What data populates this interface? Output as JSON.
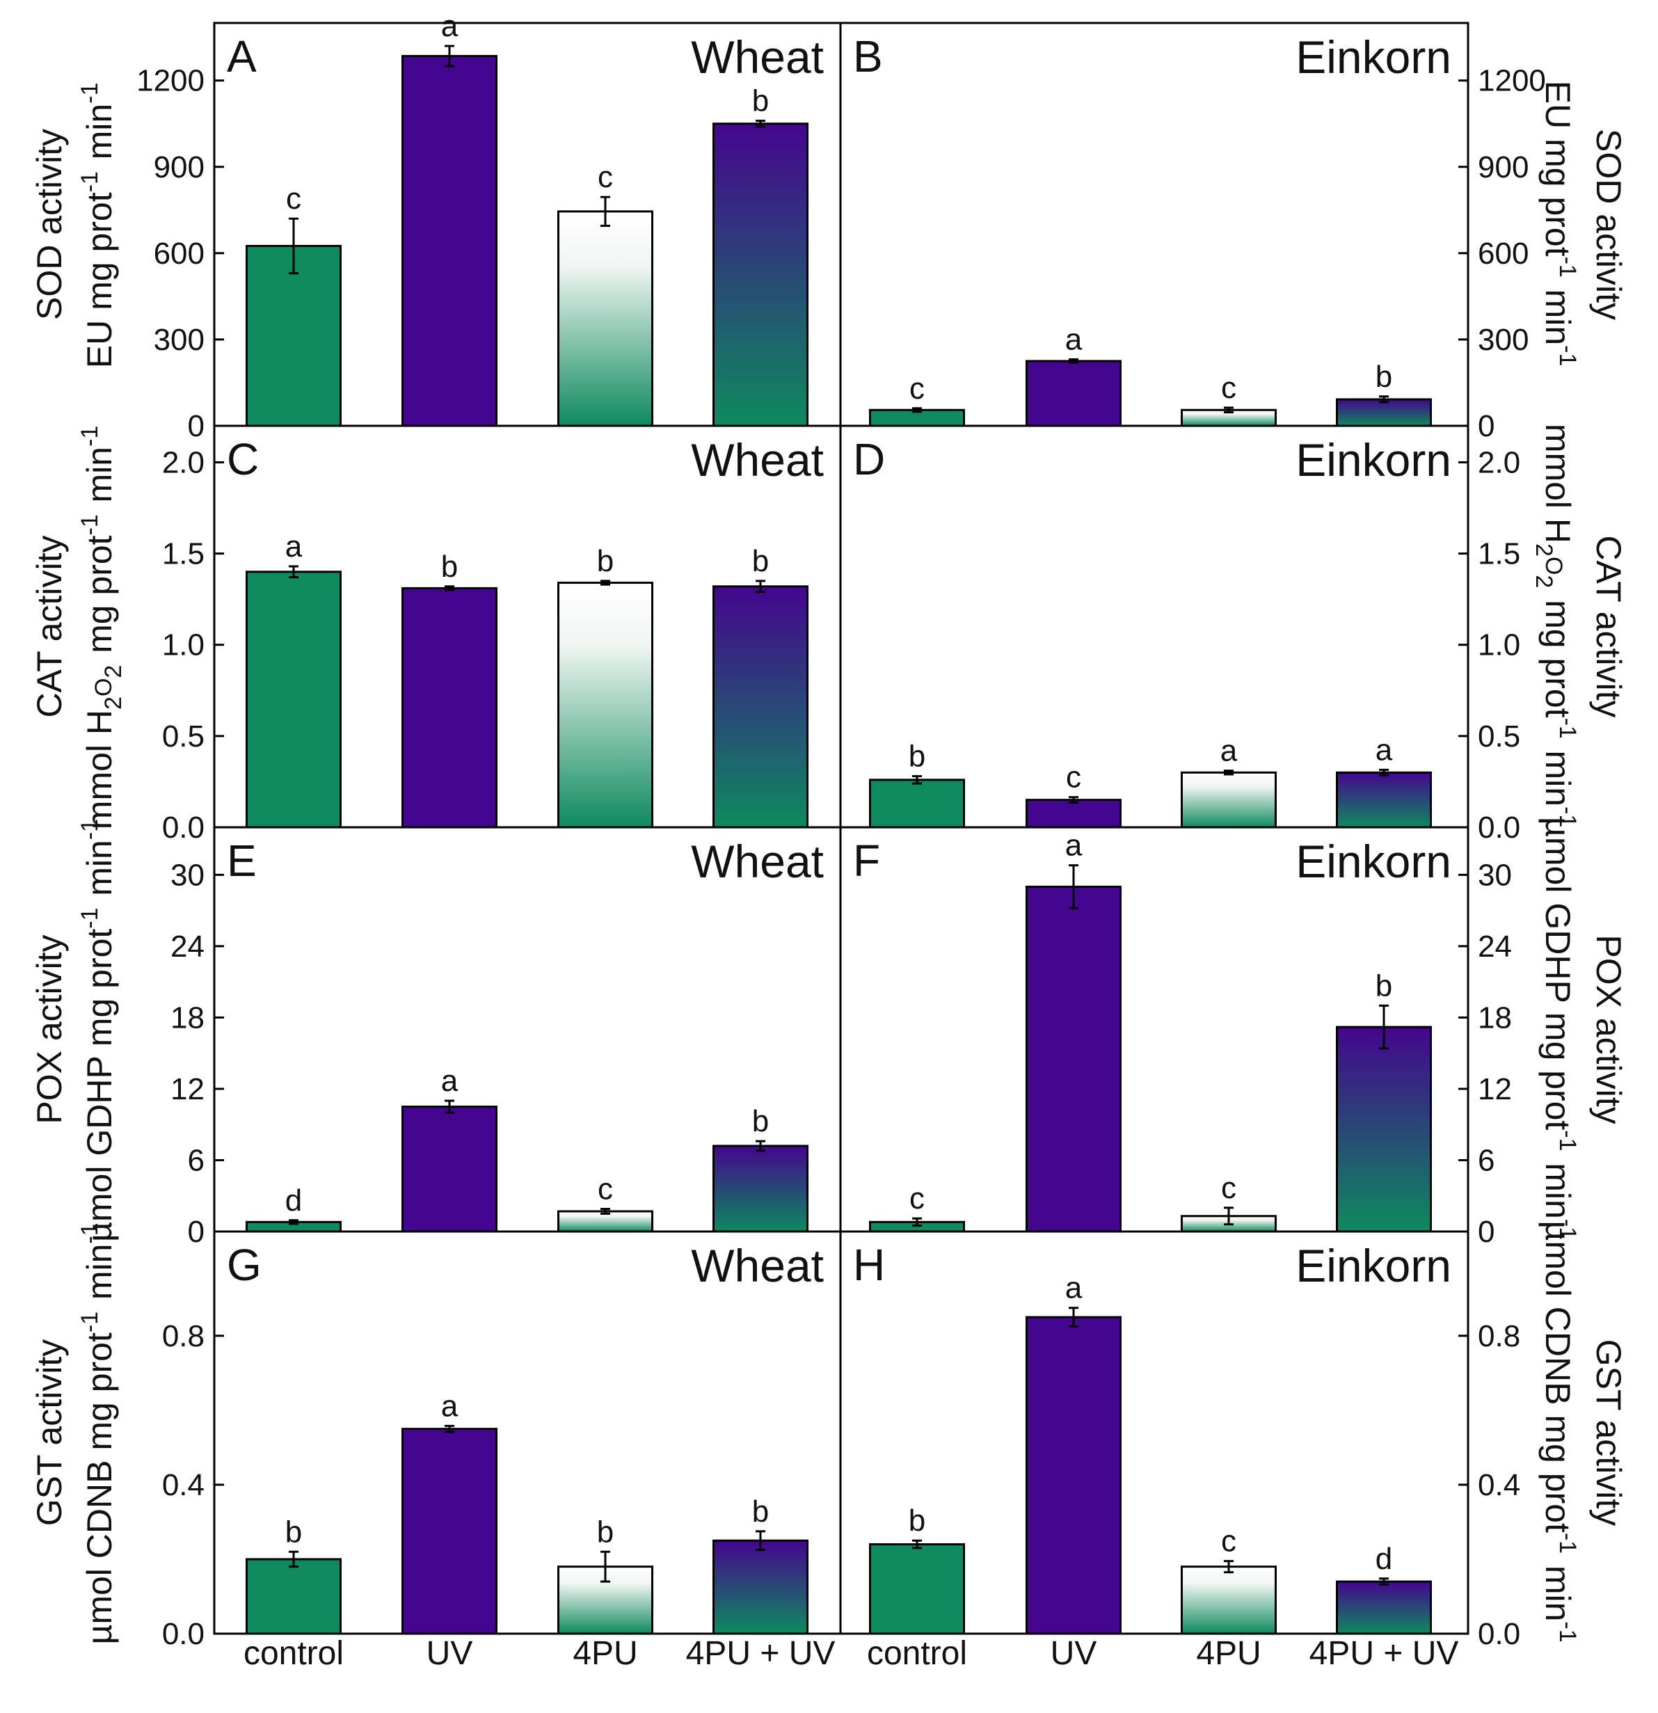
{
  "colors": {
    "control": "#0e8a5f",
    "uv": "#44068e",
    "white": "#ffffff",
    "axis": "#000000"
  },
  "categories": [
    "control",
    "UV",
    "4PU",
    "4PU + UV"
  ],
  "chart_data": [
    {
      "type": "bar",
      "panel": "A",
      "species": "Wheat",
      "side": "left",
      "row": 0,
      "ylabel": [
        "SOD activity",
        "EU mg prot-1 min-1"
      ],
      "ylim": [
        0,
        1400
      ],
      "yticks": [
        0,
        300,
        600,
        900,
        1200
      ],
      "categories": [
        "control",
        "UV",
        "4PU",
        "4PU + UV"
      ],
      "values": [
        625,
        1285,
        745,
        1050
      ],
      "errors": [
        95,
        35,
        50,
        10
      ],
      "letters": [
        "c",
        "a",
        "c",
        "b"
      ]
    },
    {
      "type": "bar",
      "panel": "B",
      "species": "Einkorn",
      "side": "right",
      "row": 0,
      "ylabel": [
        "SOD activity",
        "EU mg prot-1 min-1"
      ],
      "ylim": [
        0,
        1400
      ],
      "yticks": [
        0,
        300,
        600,
        900,
        1200
      ],
      "categories": [
        "control",
        "UV",
        "4PU",
        "4PU + UV"
      ],
      "values": [
        55,
        225,
        55,
        92
      ],
      "errors": [
        6,
        6,
        8,
        10
      ],
      "letters": [
        "c",
        "a",
        "c",
        "b"
      ]
    },
    {
      "type": "bar",
      "panel": "C",
      "species": "Wheat",
      "side": "left",
      "row": 1,
      "ylabel": [
        "CAT activity",
        "mmol H2O2 mg prot-1 min-1"
      ],
      "ylim": [
        0,
        2.2
      ],
      "yticks": [
        0.0,
        0.5,
        1.0,
        1.5,
        2.0
      ],
      "categories": [
        "control",
        "UV",
        "4PU",
        "4PU + UV"
      ],
      "values": [
        1.4,
        1.31,
        1.34,
        1.32
      ],
      "errors": [
        0.03,
        0.01,
        0.01,
        0.03
      ],
      "letters": [
        "a",
        "b",
        "b",
        "b"
      ]
    },
    {
      "type": "bar",
      "panel": "D",
      "species": "Einkorn",
      "side": "right",
      "row": 1,
      "ylabel": [
        "CAT activity",
        "mmol H2O2 mg prot-1 min-1"
      ],
      "ylim": [
        0,
        2.2
      ],
      "yticks": [
        0.0,
        0.5,
        1.0,
        1.5,
        2.0
      ],
      "categories": [
        "control",
        "UV",
        "4PU",
        "4PU + UV"
      ],
      "values": [
        0.26,
        0.15,
        0.3,
        0.3
      ],
      "errors": [
        0.02,
        0.015,
        0.01,
        0.015
      ],
      "letters": [
        "b",
        "c",
        "a",
        "a"
      ]
    },
    {
      "type": "bar",
      "panel": "E",
      "species": "Wheat",
      "side": "left",
      "row": 2,
      "ylabel": [
        "POX activity",
        "µmol GDHP mg prot-1 min-1"
      ],
      "ylim": [
        0,
        34
      ],
      "yticks": [
        0,
        6,
        12,
        18,
        24,
        30
      ],
      "categories": [
        "control",
        "UV",
        "4PU",
        "4PU + UV"
      ],
      "values": [
        0.8,
        10.5,
        1.7,
        7.2
      ],
      "errors": [
        0.15,
        0.5,
        0.2,
        0.4
      ],
      "letters": [
        "d",
        "a",
        "c",
        "b"
      ]
    },
    {
      "type": "bar",
      "panel": "F",
      "species": "Einkorn",
      "side": "right",
      "row": 2,
      "ylabel": [
        "POX activity",
        "µmol GDHP mg prot-1 min-1"
      ],
      "ylim": [
        0,
        34
      ],
      "yticks": [
        0,
        6,
        12,
        18,
        24,
        30
      ],
      "categories": [
        "control",
        "UV",
        "4PU",
        "4PU + UV"
      ],
      "values": [
        0.8,
        29.0,
        1.3,
        17.2
      ],
      "errors": [
        0.3,
        1.8,
        0.7,
        1.8
      ],
      "letters": [
        "c",
        "a",
        "c",
        "b"
      ]
    },
    {
      "type": "bar",
      "panel": "G",
      "species": "Wheat",
      "side": "left",
      "row": 3,
      "ylabel": [
        "GST activity",
        "µmol CDNB mg prot-1 min-1"
      ],
      "ylim": [
        0,
        1.08
      ],
      "yticks": [
        0.0,
        0.4,
        0.8
      ],
      "categories": [
        "control",
        "UV",
        "4PU",
        "4PU + UV"
      ],
      "values": [
        0.2,
        0.55,
        0.18,
        0.25
      ],
      "errors": [
        0.02,
        0.008,
        0.04,
        0.025
      ],
      "letters": [
        "b",
        "a",
        "b",
        "b"
      ]
    },
    {
      "type": "bar",
      "panel": "H",
      "species": "Einkorn",
      "side": "right",
      "row": 3,
      "ylabel": [
        "GST activity",
        "µmol CDNB mg prot-1 min-1"
      ],
      "ylim": [
        0,
        1.08
      ],
      "yticks": [
        0.0,
        0.4,
        0.8
      ],
      "categories": [
        "control",
        "UV",
        "4PU",
        "4PU + UV"
      ],
      "values": [
        0.24,
        0.85,
        0.18,
        0.14
      ],
      "errors": [
        0.01,
        0.025,
        0.015,
        0.008
      ],
      "letters": [
        "b",
        "a",
        "c",
        "d"
      ]
    }
  ]
}
